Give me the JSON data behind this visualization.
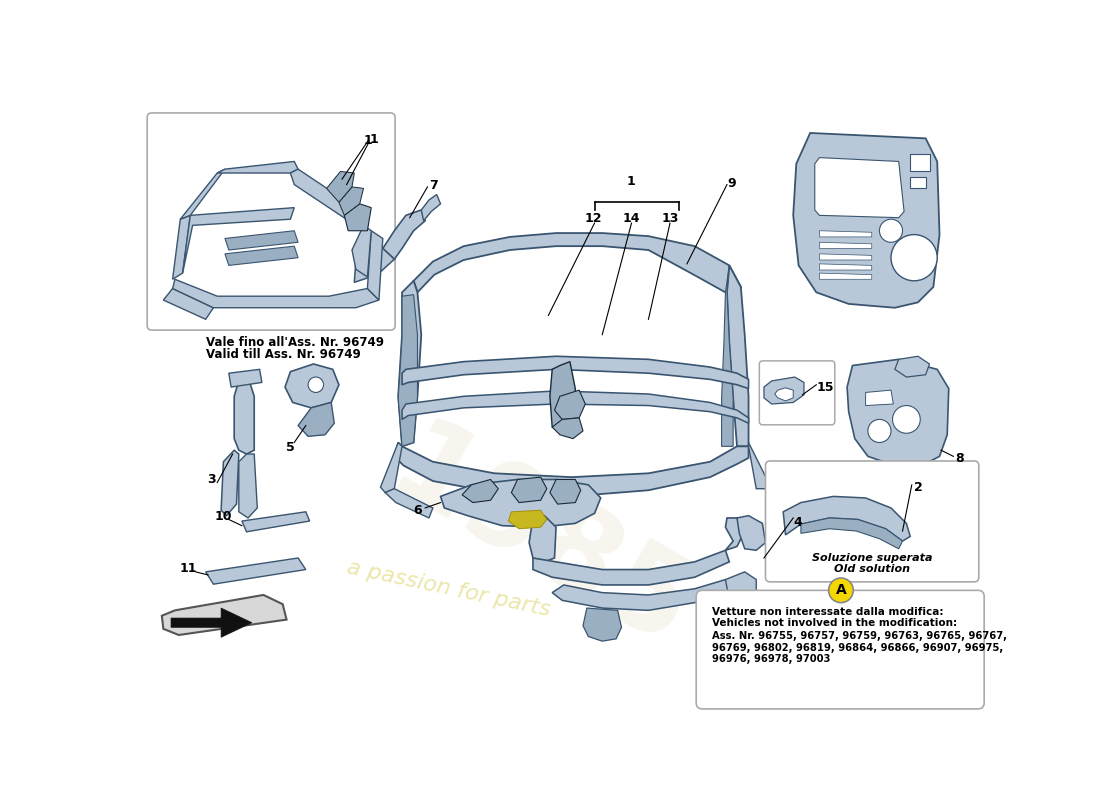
{
  "bg_color": "#ffffff",
  "part_color_light": "#b8c8d8",
  "part_color_mid": "#9aafc2",
  "part_color_dark": "#7090a8",
  "part_edge": "#3a5570",
  "part_edge_dark": "#1a2a38",
  "label_color": "#000000",
  "callout_box_edge": "#aaaaaa",
  "callout_circle_color": "#f5d800",
  "inset_box_edge": "#aaaaaa",
  "watermark_color": "#d4c840",
  "watermark_alpha": 0.45,
  "watermark_number_color": "#e8e4d0",
  "watermark_number_alpha": 0.35,
  "inset_label_it": "Vale fino all'Ass. Nr. 96749",
  "inset_label_en": "Valid till Ass. Nr. 96749",
  "old_solution_it": "Soluzione superata",
  "old_solution_en": "Old solution",
  "callout_A_line1": "Vetture non interessate dalla modifica:",
  "callout_A_line2": "Vehicles not involved in the modification:",
  "callout_A_line3": "Ass. Nr. 96755, 96757, 96759, 96763, 96765, 96767,",
  "callout_A_line4": "96769, 96802, 96819, 96864, 96866, 96907, 96975,",
  "callout_A_line5": "96976, 96978, 97003"
}
